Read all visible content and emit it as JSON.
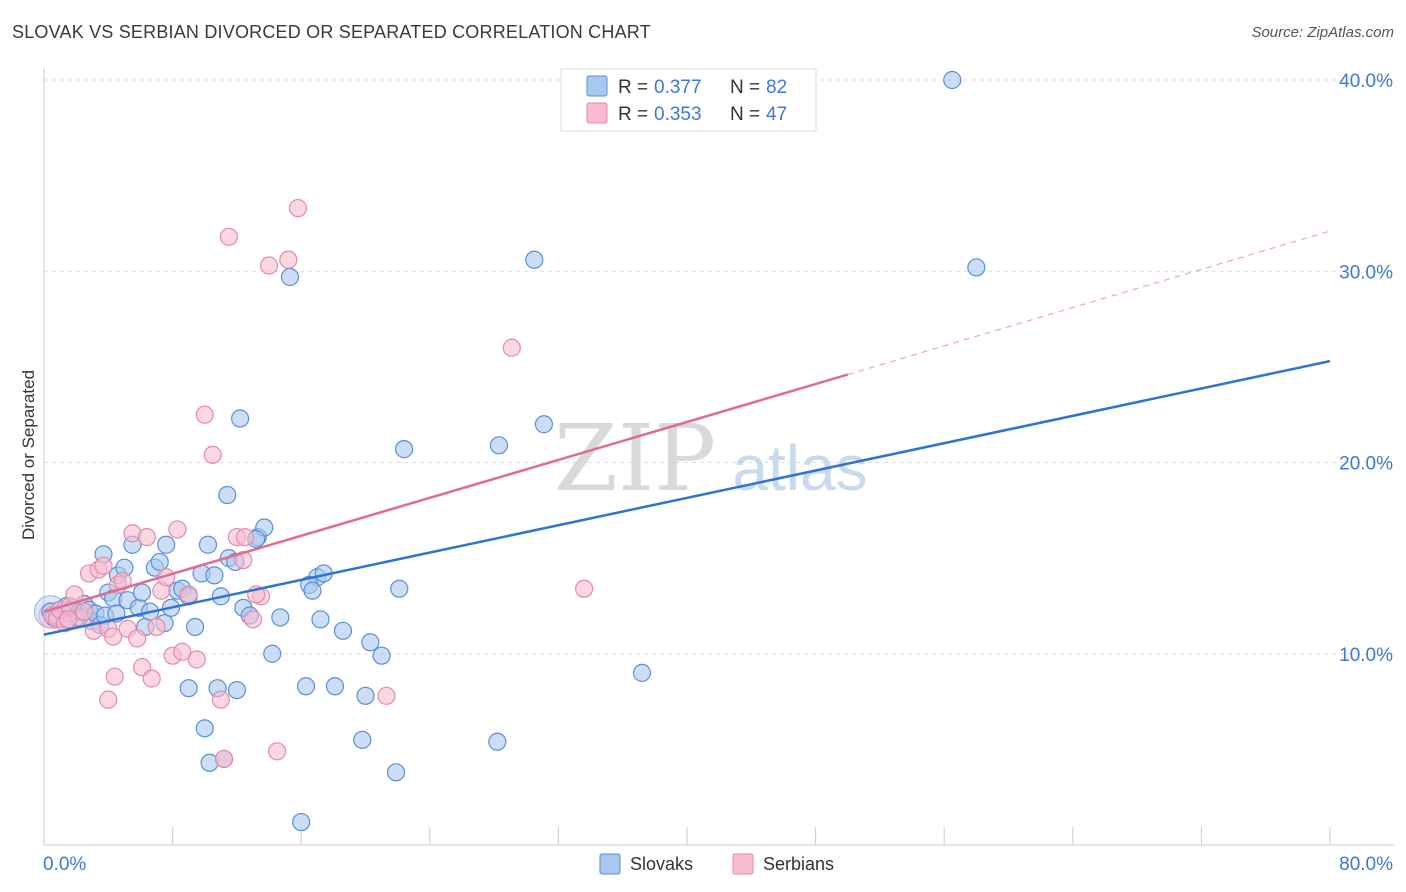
{
  "title": "SLOVAK VS SERBIAN DIVORCED OR SEPARATED CORRELATION CHART",
  "source": "Source: ZipAtlas.com",
  "watermark": {
    "zip": "ZIP",
    "atlas": "atlas"
  },
  "colors": {
    "slovak_fill": "#a8c8f0",
    "slovak_stroke": "#5b8fd6",
    "slovak_line": "#2f74d0",
    "serbian_fill": "#f7bcd0",
    "serbian_stroke": "#e68aa8",
    "serbian_line": "#e06a93",
    "axis_text": "#3b78d8",
    "grid": "#dddddd"
  },
  "legend": {
    "rows": [
      {
        "r_label": "R =",
        "r_value": "0.377",
        "n_label": "N =",
        "n_value": "82"
      },
      {
        "r_label": "R =",
        "r_value": "0.353",
        "n_label": "N =",
        "n_value": "47"
      }
    ],
    "bottom": [
      "Slovaks",
      "Serbians"
    ]
  },
  "chart_data": {
    "type": "scatter",
    "title": "SLOVAK VS SERBIAN DIVORCED OR SEPARATED CORRELATION CHART",
    "xlabel": "",
    "ylabel": "Divorced or Separated",
    "xlim": [
      0,
      80
    ],
    "ylim": [
      0,
      40
    ],
    "x_tick_labels": [
      "0.0%",
      "80.0%"
    ],
    "y_ticks": [
      10,
      20,
      30,
      40
    ],
    "y_tick_labels": [
      "10.0%",
      "20.0%",
      "30.0%",
      "40.0%"
    ],
    "grid": true,
    "legend_position": "top-center",
    "series": [
      {
        "name": "Slovaks",
        "r": 0.377,
        "n": 82,
        "trend": {
          "x0": 0,
          "y0": 11.0,
          "x1": 80,
          "y1": 25.3
        },
        "points": [
          [
            0.4,
            12.2
          ],
          [
            0.6,
            11.9
          ],
          [
            0.8,
            12.0
          ],
          [
            1.0,
            12.3
          ],
          [
            1.2,
            11.8
          ],
          [
            1.4,
            12.5
          ],
          [
            1.6,
            12.1
          ],
          [
            1.8,
            12.4
          ],
          [
            2.0,
            11.9
          ],
          [
            2.2,
            12.2
          ],
          [
            2.5,
            12.6
          ],
          [
            2.8,
            12.3
          ],
          [
            3.0,
            11.7
          ],
          [
            3.2,
            12.1
          ],
          [
            3.5,
            11.5
          ],
          [
            3.8,
            12.0
          ],
          [
            4.0,
            13.2
          ],
          [
            4.3,
            12.9
          ],
          [
            4.6,
            14.1
          ],
          [
            5.0,
            14.5
          ],
          [
            5.2,
            12.8
          ],
          [
            5.5,
            15.7
          ],
          [
            5.9,
            12.4
          ],
          [
            6.1,
            13.2
          ],
          [
            6.3,
            11.4
          ],
          [
            6.6,
            12.2
          ],
          [
            6.9,
            14.5
          ],
          [
            7.2,
            14.8
          ],
          [
            7.5,
            11.6
          ],
          [
            7.9,
            12.4
          ],
          [
            8.3,
            13.3
          ],
          [
            8.6,
            13.4
          ],
          [
            9.0,
            13.0
          ],
          [
            9.4,
            11.4
          ],
          [
            9.8,
            14.2
          ],
          [
            10.2,
            15.7
          ],
          [
            10.6,
            14.1
          ],
          [
            11.0,
            13.0
          ],
          [
            11.5,
            15.0
          ],
          [
            11.9,
            14.8
          ],
          [
            12.4,
            12.4
          ],
          [
            12.8,
            12.0
          ],
          [
            13.3,
            16.1
          ],
          [
            13.7,
            16.6
          ],
          [
            14.2,
            10.0
          ],
          [
            14.7,
            11.9
          ],
          [
            3.7,
            15.2
          ],
          [
            4.5,
            12.1
          ],
          [
            10.0,
            6.1
          ],
          [
            11.4,
            18.3
          ],
          [
            12.0,
            8.1
          ],
          [
            12.2,
            22.3
          ],
          [
            10.8,
            8.2
          ],
          [
            9.0,
            8.2
          ],
          [
            17.0,
            14.0
          ],
          [
            17.4,
            14.2
          ],
          [
            16.5,
            13.6
          ],
          [
            15.3,
            29.7
          ],
          [
            18.6,
            11.2
          ],
          [
            19.8,
            5.5
          ],
          [
            20.3,
            10.6
          ],
          [
            21.0,
            9.9
          ],
          [
            21.9,
            3.8
          ],
          [
            22.1,
            13.4
          ],
          [
            22.4,
            20.7
          ],
          [
            28.2,
            5.4
          ],
          [
            28.3,
            20.9
          ],
          [
            31.1,
            22.0
          ],
          [
            37.2,
            9.0
          ],
          [
            56.5,
            40.0
          ],
          [
            58.0,
            30.2
          ],
          [
            30.5,
            30.6
          ],
          [
            16.7,
            13.3
          ],
          [
            13.2,
            16.0
          ],
          [
            17.2,
            11.8
          ],
          [
            7.6,
            15.7
          ],
          [
            10.3,
            4.3
          ],
          [
            11.2,
            4.5
          ],
          [
            16.3,
            8.3
          ],
          [
            18.1,
            8.3
          ],
          [
            20.0,
            7.8
          ],
          [
            16.0,
            1.2
          ]
        ]
      },
      {
        "name": "Serbians",
        "r": 0.353,
        "n": 47,
        "trend": {
          "x0": 0,
          "y0": 12.2,
          "x1": 50,
          "y1": 24.6,
          "dash_to_x": 80,
          "dash_to_y": 32.1
        },
        "points": [
          [
            0.5,
            12.0
          ],
          [
            0.8,
            11.8
          ],
          [
            1.0,
            12.3
          ],
          [
            1.3,
            11.6
          ],
          [
            1.6,
            12.5
          ],
          [
            1.9,
            13.1
          ],
          [
            2.2,
            11.9
          ],
          [
            2.5,
            12.2
          ],
          [
            2.8,
            14.2
          ],
          [
            3.1,
            11.2
          ],
          [
            3.4,
            14.4
          ],
          [
            3.7,
            14.6
          ],
          [
            4.0,
            11.3
          ],
          [
            4.3,
            10.9
          ],
          [
            4.6,
            13.6
          ],
          [
            4.9,
            13.8
          ],
          [
            5.2,
            11.3
          ],
          [
            5.5,
            16.3
          ],
          [
            5.8,
            10.8
          ],
          [
            6.1,
            9.3
          ],
          [
            6.4,
            16.1
          ],
          [
            6.7,
            8.7
          ],
          [
            7.0,
            11.4
          ],
          [
            7.3,
            13.3
          ],
          [
            7.6,
            14.0
          ],
          [
            8.0,
            9.9
          ],
          [
            8.3,
            16.5
          ],
          [
            8.6,
            10.1
          ],
          [
            9.0,
            13.1
          ],
          [
            9.5,
            9.7
          ],
          [
            10.0,
            22.5
          ],
          [
            10.5,
            20.4
          ],
          [
            11.0,
            7.6
          ],
          [
            11.5,
            31.8
          ],
          [
            12.0,
            16.1
          ],
          [
            12.5,
            16.1
          ],
          [
            13.0,
            11.8
          ],
          [
            13.5,
            13.0
          ],
          [
            14.0,
            30.3
          ],
          [
            15.2,
            30.6
          ],
          [
            15.8,
            33.3
          ],
          [
            14.5,
            4.9
          ],
          [
            11.2,
            4.5
          ],
          [
            13.2,
            13.1
          ],
          [
            4.4,
            8.8
          ],
          [
            1.5,
            11.8
          ],
          [
            33.6,
            13.4
          ]
        ]
      }
    ]
  },
  "extra_serbian_fix": [
    [
      21.3,
      7.8
    ],
    [
      29.1,
      26.0
    ],
    [
      12.4,
      14.9
    ],
    [
      4.0,
      7.6
    ]
  ]
}
